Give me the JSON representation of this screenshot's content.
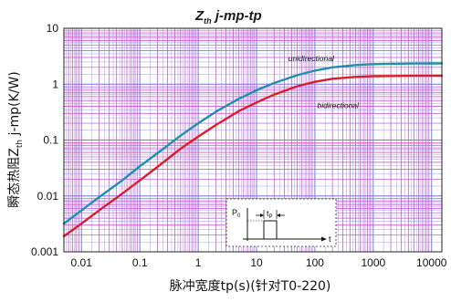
{
  "chart_data": {
    "type": "line",
    "title": "Z",
    "title_subscript": "th",
    "title_rest": " j-mp-tp",
    "xlabel": "脉冲宽度tp(s)(针对T0-220)",
    "ylabel_prefix": "瞬态热阻Z",
    "ylabel_subscript": "th",
    "ylabel_suffix": " j-mp(K/W)",
    "x_scale": "log",
    "y_scale": "log",
    "xlim": [
      0.005,
      15000
    ],
    "ylim": [
      0.001,
      10
    ],
    "x_ticks": [
      0.01,
      0.1,
      1,
      10,
      100,
      1000,
      10000
    ],
    "x_tick_labels": [
      "0.01",
      "0.1",
      "1",
      "10",
      "100",
      "1000",
      "10000"
    ],
    "y_ticks": [
      0.001,
      0.01,
      0.1,
      1,
      10
    ],
    "y_tick_labels": [
      "0.001",
      "0.01",
      "0.1",
      "1",
      "10"
    ],
    "grid": true,
    "series": [
      {
        "name": "unidirectional",
        "color": "#1f8fae",
        "x": [
          0.005,
          0.01,
          0.02,
          0.05,
          0.1,
          0.2,
          0.5,
          1,
          2,
          5,
          10,
          20,
          50,
          100,
          200,
          500,
          1000,
          2000,
          5000,
          10000,
          15000
        ],
        "y": [
          0.0032,
          0.0055,
          0.0095,
          0.019,
          0.034,
          0.058,
          0.12,
          0.2,
          0.32,
          0.55,
          0.78,
          1.05,
          1.45,
          1.75,
          2.0,
          2.2,
          2.28,
          2.32,
          2.34,
          2.35,
          2.35
        ]
      },
      {
        "name": "bidirectional",
        "color": "#d81e2a",
        "x": [
          0.005,
          0.01,
          0.02,
          0.05,
          0.1,
          0.2,
          0.5,
          1,
          2,
          5,
          10,
          20,
          50,
          100,
          200,
          500,
          1000,
          2000,
          5000,
          10000,
          15000
        ],
        "y": [
          0.0019,
          0.0032,
          0.0055,
          0.011,
          0.019,
          0.033,
          0.07,
          0.115,
          0.185,
          0.33,
          0.47,
          0.65,
          0.92,
          1.1,
          1.25,
          1.35,
          1.39,
          1.4,
          1.41,
          1.41,
          1.41
        ]
      }
    ],
    "annotations": [
      {
        "text": "unidirectional",
        "x": 35,
        "y": 2.6
      },
      {
        "text": "bidirectional",
        "x": 110,
        "y": 0.37
      }
    ],
    "inset": {
      "y_label": "P",
      "y_label_sub": "0",
      "x_label": "t",
      "pulse_label": "t",
      "pulse_label_sub": "P"
    }
  },
  "colors": {
    "grid_minor": "#cc44cc",
    "grid_major": "#7777ee",
    "frame": "#222222"
  }
}
